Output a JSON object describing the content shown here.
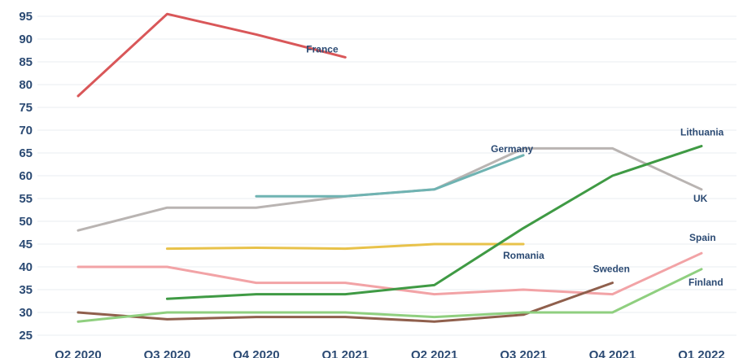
{
  "chart_data": {
    "type": "line",
    "title": "",
    "xlabel": "",
    "ylabel": "",
    "categories": [
      "Q2 2020",
      "Q3 2020",
      "Q4 2020",
      "Q1 2021",
      "Q2 2021",
      "Q3 2021",
      "Q4 2021",
      "Q1 2022"
    ],
    "y_ticks": [
      25,
      30,
      35,
      40,
      45,
      50,
      55,
      60,
      65,
      70,
      75,
      80,
      85,
      90,
      95
    ],
    "ylim": [
      23,
      96
    ],
    "grid": true,
    "legend": "none",
    "series": [
      {
        "name": "France",
        "color": "#d95759",
        "values": [
          77.5,
          95.5,
          91,
          86,
          null,
          null,
          null,
          null
        ]
      },
      {
        "name": "UK",
        "color": "#b9b4b2",
        "values": [
          48,
          53,
          53,
          55.5,
          57,
          66,
          66,
          57
        ]
      },
      {
        "name": "Germany",
        "color": "#6fb3b2",
        "values": [
          null,
          null,
          55.5,
          55.5,
          57,
          64.5,
          null,
          null
        ]
      },
      {
        "name": "Romania",
        "color": "#e8c24a",
        "values": [
          null,
          44,
          44.2,
          44,
          45,
          45,
          null,
          null
        ]
      },
      {
        "name": "Spain",
        "color": "#f2a3a6",
        "values": [
          40,
          40,
          36.5,
          36.5,
          34,
          35,
          34,
          43
        ]
      },
      {
        "name": "Lithuania",
        "color": "#3f9a44",
        "values": [
          null,
          33,
          34,
          34,
          36,
          48.5,
          60,
          66.5
        ]
      },
      {
        "name": "Sweden",
        "color": "#8f5f4c",
        "values": [
          30,
          28.5,
          29,
          29,
          28,
          29.5,
          36.5,
          null
        ]
      },
      {
        "name": "Finland",
        "color": "#8fcf7f",
        "values": [
          28,
          30,
          30,
          30,
          29,
          30,
          30,
          39.5
        ]
      }
    ]
  }
}
